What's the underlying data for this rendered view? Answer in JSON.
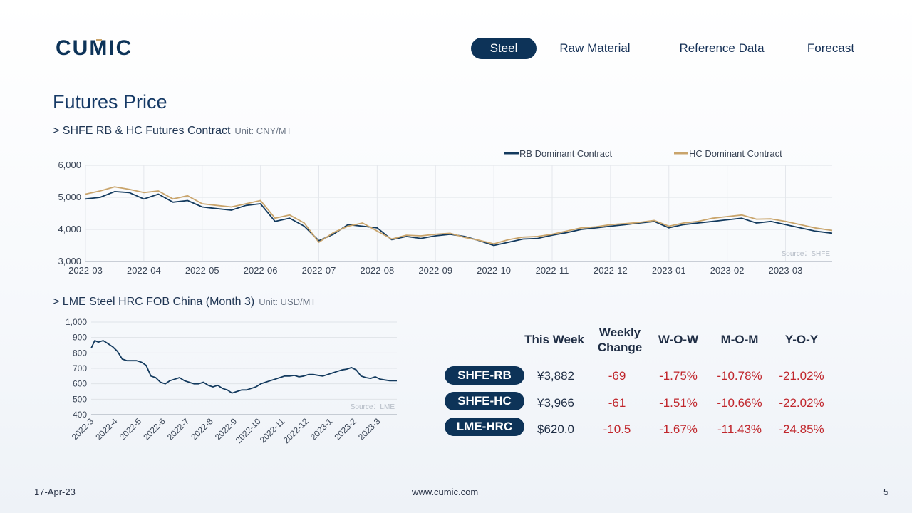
{
  "logo_text": "CUMIC",
  "nav": [
    {
      "label": "Steel",
      "active": true
    },
    {
      "label": "Raw Material",
      "active": false
    },
    {
      "label": "Reference Data",
      "active": false
    },
    {
      "label": "Forecast",
      "active": false
    }
  ],
  "page_title": "Futures Price",
  "section1": {
    "title": "> SHFE RB & HC Futures Contract",
    "unit": "Unit: CNY/MT"
  },
  "section2": {
    "title": "> LME Steel HRC FOB China (Month 3)",
    "unit": "Unit: USD/MT"
  },
  "table": {
    "headers": [
      "This Week",
      "Weekly Change",
      "W-O-W",
      "M-O-M",
      "Y-O-Y"
    ],
    "rows": [
      {
        "label": "SHFE-RB",
        "price": "¥3,882",
        "change": "-69",
        "wow": "-1.75%",
        "mom": "-10.78%",
        "yoy": "-21.02%"
      },
      {
        "label": "SHFE-HC",
        "price": "¥3,966",
        "change": "-61",
        "wow": "-1.51%",
        "mom": "-10.66%",
        "yoy": "-22.02%"
      },
      {
        "label": "LME-HRC",
        "price": "$620.0",
        "change": "-10.5",
        "wow": "-1.67%",
        "mom": "-11.43%",
        "yoy": "-24.85%"
      }
    ]
  },
  "footer": {
    "date": "17-Apr-23",
    "url": "www.cumic.com",
    "page": "5"
  },
  "colors": {
    "navy": "#0d3358",
    "rb": "#133a5e",
    "hc": "#c9a46b",
    "negative": "#c0262c"
  },
  "chart_data": [
    {
      "type": "line",
      "ylim": [
        3000,
        6000
      ],
      "yticks": [
        "3,000",
        "4,000",
        "5,000",
        "6,000"
      ],
      "x_tick_labels": [
        "2022-03",
        "2022-04",
        "2022-05",
        "2022-06",
        "2022-07",
        "2022-08",
        "2022-09",
        "2022-10",
        "2022-11",
        "2022-12",
        "2023-01",
        "2023-02",
        "2023-03"
      ],
      "x_domain": [
        0,
        12.8
      ],
      "legend_position": "top-right",
      "source": "Source：SHFE",
      "x": [
        0,
        0.25,
        0.5,
        0.75,
        1,
        1.25,
        1.5,
        1.75,
        2,
        2.25,
        2.5,
        2.75,
        3,
        3.25,
        3.5,
        3.75,
        4,
        4.25,
        4.5,
        4.75,
        5,
        5.25,
        5.5,
        5.75,
        6,
        6.25,
        6.5,
        6.75,
        7,
        7.25,
        7.5,
        7.75,
        8,
        8.25,
        8.5,
        8.75,
        9,
        9.25,
        9.5,
        9.75,
        10,
        10.25,
        10.5,
        10.75,
        11,
        11.25,
        11.5,
        11.75,
        12,
        12.25,
        12.5,
        12.8
      ],
      "series": [
        {
          "name": "RB Dominant Contract",
          "color": "#133a5e",
          "values": [
            4950,
            5000,
            5180,
            5150,
            4950,
            5100,
            4850,
            4900,
            4700,
            4650,
            4600,
            4750,
            4800,
            4250,
            4350,
            4100,
            3650,
            3850,
            4150,
            4100,
            4050,
            3680,
            3780,
            3720,
            3800,
            3850,
            3780,
            3650,
            3500,
            3600,
            3700,
            3720,
            3820,
            3900,
            4000,
            4050,
            4100,
            4150,
            4200,
            4250,
            4050,
            4150,
            4200,
            4250,
            4300,
            4350,
            4200,
            4250,
            4150,
            4050,
            3950,
            3882
          ]
        },
        {
          "name": "HC Dominant Contract",
          "color": "#c9a46b",
          "values": [
            5100,
            5200,
            5330,
            5250,
            5150,
            5200,
            4950,
            5050,
            4800,
            4750,
            4700,
            4800,
            4900,
            4350,
            4450,
            4200,
            3600,
            3900,
            4100,
            4200,
            3950,
            3700,
            3820,
            3800,
            3850,
            3880,
            3750,
            3660,
            3550,
            3680,
            3760,
            3780,
            3850,
            3950,
            4050,
            4080,
            4150,
            4180,
            4220,
            4280,
            4100,
            4200,
            4250,
            4350,
            4400,
            4450,
            4320,
            4330,
            4250,
            4150,
            4050,
            3966
          ]
        }
      ]
    },
    {
      "type": "line",
      "ylim": [
        400,
        1000
      ],
      "yticks": [
        "400",
        "500",
        "600",
        "700",
        "800",
        "900",
        "1,000"
      ],
      "x_tick_labels": [
        "2022-3",
        "2022-4",
        "2022-5",
        "2022-6",
        "2022-7",
        "2022-8",
        "2022-9",
        "2022-10",
        "2022-11",
        "2022-12",
        "2023-1",
        "2023-2",
        "2023-3"
      ],
      "x_domain": [
        0,
        12.8
      ],
      "source": "Source：LME",
      "x": [
        0,
        0.15,
        0.3,
        0.5,
        0.7,
        0.9,
        1.1,
        1.3,
        1.5,
        1.7,
        1.9,
        2.1,
        2.3,
        2.5,
        2.7,
        2.9,
        3.1,
        3.3,
        3.5,
        3.7,
        3.9,
        4.1,
        4.3,
        4.5,
        4.7,
        4.9,
        5.1,
        5.3,
        5.5,
        5.7,
        5.9,
        6.1,
        6.3,
        6.5,
        6.7,
        6.9,
        7.1,
        7.3,
        7.5,
        7.7,
        7.9,
        8.1,
        8.3,
        8.5,
        8.7,
        8.9,
        9.1,
        9.3,
        9.5,
        9.7,
        9.9,
        10.1,
        10.3,
        10.5,
        10.7,
        10.9,
        11.1,
        11.3,
        11.5,
        11.7,
        11.9,
        12.1,
        12.3,
        12.5,
        12.8
      ],
      "series": [
        {
          "name": "LME Steel HRC FOB China (Month 3)",
          "color": "#133a5e",
          "values": [
            830,
            880,
            870,
            880,
            860,
            840,
            810,
            760,
            750,
            750,
            750,
            740,
            720,
            650,
            640,
            610,
            600,
            620,
            630,
            640,
            620,
            610,
            600,
            600,
            610,
            590,
            580,
            590,
            570,
            560,
            540,
            550,
            560,
            560,
            570,
            580,
            600,
            610,
            620,
            630,
            640,
            650,
            650,
            655,
            645,
            650,
            660,
            660,
            655,
            650,
            660,
            670,
            680,
            690,
            695,
            705,
            690,
            650,
            640,
            635,
            645,
            630,
            625,
            620,
            620
          ]
        }
      ]
    }
  ]
}
